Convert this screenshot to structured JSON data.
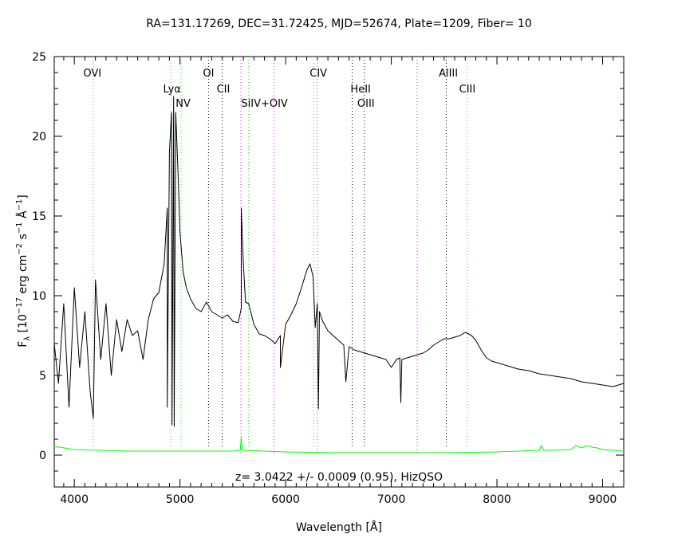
{
  "chart_data": {
    "type": "line",
    "title": "RA=131.17269, DEC=31.72425, MJD=52674, Plate=1209, Fiber= 10",
    "xlabel": "Wavelength [Å]",
    "ylabel": "F_λ [10^-17 erg cm^-2 s^-1 Å^-1]",
    "ylabel_parts": {
      "f": "F",
      "lambda": "λ",
      "open": " [10",
      "exp17": "−17",
      "unit1": " erg cm",
      "exp2": "−2",
      "unit2": " s",
      "exp1": "−1",
      "unit3": " Å",
      "exp1b": "−1",
      "close": "]"
    },
    "xlim": [
      3810,
      9200
    ],
    "ylim": [
      -2,
      25
    ],
    "x_ticks": [
      4000,
      5000,
      6000,
      7000,
      8000,
      9000
    ],
    "y_ticks": [
      0,
      5,
      10,
      15,
      20,
      25
    ],
    "annotation": "z= 3.0422 +/- 0.0009 (0.95), HizQSO",
    "grid": false,
    "legend": "none",
    "series": [
      {
        "color": "#000000",
        "x": [
          3810,
          3850,
          3900,
          3950,
          4000,
          4050,
          4100,
          4150,
          4200,
          4250,
          4300,
          4350,
          4400,
          4450,
          4500,
          4550,
          4600,
          4650,
          4700,
          4750,
          4800,
          4850,
          4880,
          4900,
          4920,
          4940,
          4960,
          4980,
          5000,
          5030,
          5060,
          5100,
          5150,
          5200,
          5250,
          5300,
          5350,
          5400,
          5450,
          5500,
          5550,
          5580,
          5600,
          5620,
          5650,
          5700,
          5750,
          5800,
          5850,
          5900,
          5950,
          6000,
          6050,
          6100,
          6150,
          6200,
          6230,
          6260,
          6280,
          6300,
          6320,
          6350,
          6400,
          6450,
          6500,
          6550,
          6600,
          6650,
          6700,
          6750,
          6800,
          6850,
          6900,
          6950,
          7000,
          7050,
          7080,
          7100,
          7150,
          7200,
          7250,
          7300,
          7350,
          7400,
          7450,
          7500,
          7550,
          7600,
          7650,
          7700,
          7730,
          7760,
          7800,
          7850,
          7900,
          7950,
          8000,
          8100,
          8200,
          8300,
          8400,
          8500,
          8600,
          8700,
          8800,
          8900,
          9000,
          9100,
          9200
        ],
        "y": [
          7.0,
          4.5,
          9.5,
          3.0,
          10.5,
          5.5,
          9.0,
          4.0,
          11.0,
          6.0,
          9.5,
          5.0,
          8.5,
          6.5,
          8.5,
          7.5,
          7.8,
          6.0,
          8.5,
          9.8,
          10.2,
          12.0,
          15.5,
          19.0,
          21.5,
          22.5,
          21.5,
          18.0,
          14.0,
          11.5,
          10.5,
          9.8,
          9.2,
          9.0,
          9.6,
          9.0,
          8.8,
          8.6,
          8.8,
          8.4,
          8.3,
          9.2,
          12.0,
          9.6,
          9.5,
          8.2,
          7.6,
          7.5,
          7.3,
          7.0,
          7.5,
          8.2,
          8.8,
          9.5,
          10.5,
          11.6,
          12.0,
          11.2,
          8.0,
          9.5,
          9.0,
          8.4,
          7.8,
          7.5,
          7.2,
          6.9,
          6.8,
          6.6,
          6.5,
          6.4,
          6.3,
          6.2,
          6.1,
          6.0,
          5.5,
          6.0,
          6.1,
          6.0,
          6.1,
          6.2,
          6.3,
          6.4,
          6.6,
          6.9,
          7.1,
          7.3,
          7.3,
          7.4,
          7.5,
          7.7,
          7.6,
          7.5,
          7.2,
          6.6,
          6.1,
          5.9,
          5.8,
          5.6,
          5.4,
          5.3,
          5.1,
          5.0,
          4.9,
          4.8,
          4.6,
          4.5,
          4.4,
          4.3,
          4.5
        ],
        "features": [
          {
            "x": 4180,
            "y": 2.3
          },
          {
            "x": 4880,
            "y": 3.0
          },
          {
            "x": 4925,
            "y": 1.9
          },
          {
            "x": 4945,
            "y": 1.8
          },
          {
            "x": 5580,
            "y": 15.5
          },
          {
            "x": 5950,
            "y": 5.5
          },
          {
            "x": 6310,
            "y": 2.9
          },
          {
            "x": 6570,
            "y": 4.6
          },
          {
            "x": 7090,
            "y": 3.3
          }
        ]
      },
      {
        "color": "#00ff00",
        "x": [
          3810,
          4000,
          4500,
          5000,
          5500,
          5570,
          5580,
          5590,
          6000,
          6500,
          7000,
          7500,
          8000,
          8400,
          8420,
          8440,
          8500,
          8700,
          8750,
          8800,
          8850,
          8900,
          8950,
          9000,
          9100,
          9200
        ],
        "y": [
          0.55,
          0.35,
          0.25,
          0.25,
          0.25,
          0.3,
          1.1,
          0.3,
          0.2,
          0.15,
          0.15,
          0.15,
          0.2,
          0.3,
          0.6,
          0.3,
          0.3,
          0.35,
          0.6,
          0.45,
          0.6,
          0.5,
          0.45,
          0.35,
          0.3,
          0.25
        ]
      }
    ],
    "emission_lines": [
      {
        "label": "OVI",
        "x": 4180,
        "color": "#00ff00",
        "label_x": 4170,
        "label_y": 24.0
      },
      {
        "label": "Lyα",
        "x": 4915,
        "color": "#00ff00",
        "label_x": 4925,
        "label_y": 23.0
      },
      {
        "label": "NV",
        "x": 5010,
        "color": "#00ff00",
        "label_x": 5030,
        "label_y": 22.1
      },
      {
        "label": "OI",
        "x": 5270,
        "color": "#000000",
        "label_x": 5270,
        "label_y": 24.0
      },
      {
        "label": "CII",
        "x": 5400,
        "color": "#000000",
        "label_x": 5410,
        "label_y": 23.0
      },
      {
        "label": "SiIV+OIV",
        "x": 5650,
        "color": "#00ff00",
        "label_x": 5800,
        "label_y": 22.1
      },
      {
        "label": "CIV",
        "x": 6265,
        "color": "#00ff00",
        "label_x": 6310,
        "label_y": 24.0
      },
      {
        "label": "HeII",
        "x": 6630,
        "color": "#000000",
        "label_x": 6710,
        "label_y": 23.0
      },
      {
        "label": "OIII",
        "x": 6745,
        "color": "#000000",
        "label_x": 6760,
        "label_y": 22.1
      },
      {
        "label": "AlIII",
        "x": 7520,
        "color": "#000000",
        "label_x": 7540,
        "label_y": 24.0
      },
      {
        "label": "CIII",
        "x": 7720,
        "color": "#00ff00",
        "label_x": 7720,
        "label_y": 23.0
      }
    ],
    "sky_lines": [
      {
        "x": 5577,
        "color": "#ff00ff"
      },
      {
        "x": 5890,
        "color": "#ff00ff"
      },
      {
        "x": 6300,
        "color": "#ff00ff"
      },
      {
        "x": 7245,
        "color": "#ff00ff"
      }
    ]
  }
}
